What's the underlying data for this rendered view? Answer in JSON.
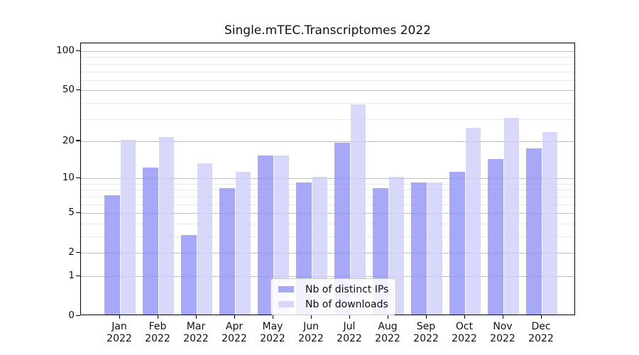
{
  "title": "Single.mTEC.Transcriptomes 2022",
  "chart_data": {
    "type": "bar",
    "categories": [
      "Jan",
      "Feb",
      "Mar",
      "Apr",
      "May",
      "Jun",
      "Jul",
      "Aug",
      "Sep",
      "Oct",
      "Nov",
      "Dec"
    ],
    "year": "2022",
    "series": [
      {
        "name": "Nb of distinct IPs",
        "color": "#9292f6",
        "opacity": 0.8,
        "values": [
          7,
          12,
          3,
          8,
          15,
          9,
          19,
          8,
          9,
          11,
          14,
          17
        ]
      },
      {
        "name": "Nb of downloads",
        "color": "#cecef9",
        "opacity": 0.8,
        "values": [
          20,
          21,
          13,
          11,
          15,
          10,
          38,
          10,
          9,
          25,
          30,
          23
        ]
      }
    ],
    "xlabel": "",
    "ylabel": "",
    "y_axis": {
      "scale": "log10(value+1)",
      "major_ticks": [
        0,
        1,
        2,
        5,
        10,
        20,
        50,
        100
      ],
      "minor_ticks": [
        3,
        4,
        6,
        7,
        8,
        9,
        30,
        40,
        60,
        70,
        80,
        90
      ],
      "ylim": [
        0,
        115
      ]
    },
    "grid": true,
    "legend": {
      "position": "lower center",
      "entries": [
        "Nb of distinct IPs",
        "Nb of downloads"
      ]
    },
    "colors": {
      "bar_distinct_ips": "#9292f6",
      "bar_downloads": "#cecef9",
      "major_grid": "#bfbfbf",
      "minor_grid": "#e8e8e8",
      "spine": "#000000",
      "text": "#111111",
      "background": "#ffffff"
    }
  }
}
